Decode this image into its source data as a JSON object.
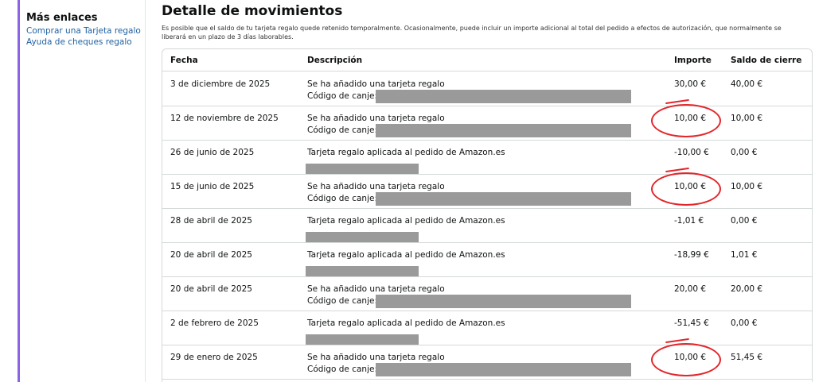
{
  "sidebar": {
    "title": "Más enlaces",
    "links": [
      "Comprar una Tarjeta regalo",
      "Ayuda de cheques regalo"
    ]
  },
  "main": {
    "title": "Detalle de movimientos",
    "intro": "Es posible que el saldo de tu tarjeta regalo quede retenido temporalmente. Ocasionalmente, puede incluir un importe adicional al total del pedido a efectos de autorización, que normalmente se liberará en un plazo de 3 días laborables."
  },
  "table": {
    "headers": {
      "date": "Fecha",
      "description": "Descripción",
      "amount": "Importe",
      "balance": "Saldo de cierre"
    },
    "rows": [
      {
        "date": "3 de diciembre de 2025",
        "description": "Se ha añadido una tarjeta regalo",
        "sub": "Código de canje:",
        "amount": "30,00 €",
        "balance": "40,00 €",
        "circled": false,
        "kind": "code"
      },
      {
        "date": "12 de noviembre de 2025",
        "description": "Se ha añadido una tarjeta regalo",
        "sub": "Código de canje:",
        "amount": "10,00 €",
        "balance": "10,00 €",
        "circled": true,
        "kind": "code"
      },
      {
        "date": "26 de junio de 2025",
        "description": "Tarjeta regalo aplicada al pedido de Amazon.es",
        "sub": "",
        "amount": "-10,00 €",
        "balance": "0,00 €",
        "circled": false,
        "kind": "order"
      },
      {
        "date": "15 de junio de 2025",
        "description": "Se ha añadido una tarjeta regalo",
        "sub": "Código de canje:",
        "amount": "10,00 €",
        "balance": "10,00 €",
        "circled": true,
        "kind": "code"
      },
      {
        "date": "28 de abril de 2025",
        "description": "Tarjeta regalo aplicada al pedido de Amazon.es",
        "sub": "",
        "amount": "-1,01 €",
        "balance": "0,00 €",
        "circled": false,
        "kind": "order"
      },
      {
        "date": "20 de abril de 2025",
        "description": "Tarjeta regalo aplicada al pedido de Amazon.es",
        "sub": "",
        "amount": "-18,99 €",
        "balance": "1,01 €",
        "circled": false,
        "kind": "order"
      },
      {
        "date": "20 de abril de 2025",
        "description": "Se ha añadido una tarjeta regalo",
        "sub": "Código de canje:",
        "amount": "20,00 €",
        "balance": "20,00 €",
        "circled": false,
        "kind": "code"
      },
      {
        "date": "2 de febrero de 2025",
        "description": "Tarjeta regalo aplicada al pedido de Amazon.es",
        "sub": "",
        "amount": "-51,45 €",
        "balance": "0,00 €",
        "circled": false,
        "kind": "order"
      },
      {
        "date": "29 de enero de 2025",
        "description": "Se ha añadido una tarjeta regalo",
        "sub": "Código de canje:",
        "amount": "10,00 €",
        "balance": "51,45 €",
        "circled": true,
        "kind": "code"
      }
    ]
  },
  "colors": {
    "link": "#2162a1",
    "accent_rail": "#8a63e6",
    "annotation": "#e3262b",
    "redaction": "#9a9a9a"
  }
}
